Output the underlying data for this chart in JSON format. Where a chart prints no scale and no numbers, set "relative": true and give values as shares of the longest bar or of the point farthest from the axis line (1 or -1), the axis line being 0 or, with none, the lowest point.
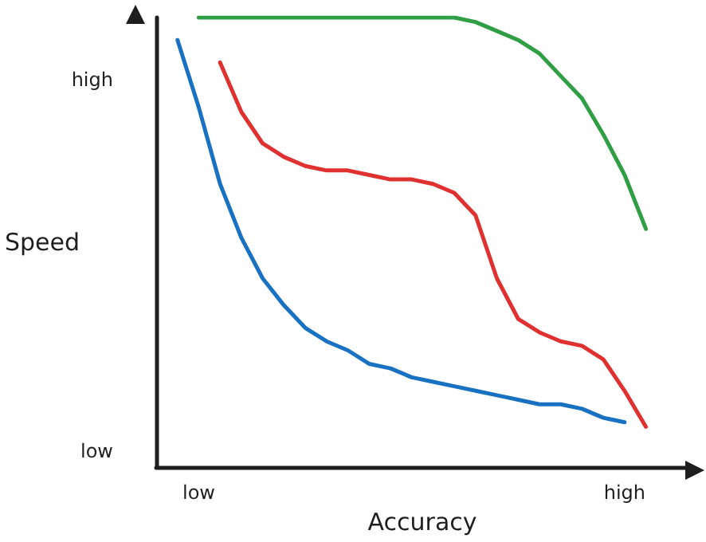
{
  "chart_data": {
    "type": "line",
    "relative": true,
    "xlabel": "Accuracy",
    "ylabel": "Speed",
    "categories": [
      null,
      null,
      "low",
      null,
      null,
      null,
      null,
      null,
      null,
      null,
      null,
      null,
      null,
      null,
      null,
      null,
      null,
      null,
      null,
      null,
      null,
      null,
      "high",
      null,
      null,
      null
    ],
    "annotations": [
      "low",
      "high"
    ],
    "grid": false,
    "marker": "none",
    "line_style": "solid",
    "series": [
      {
        "color": "#1971c2",
        "values": [
          null,
          0.95,
          0.8,
          0.63,
          0.51,
          0.42,
          0.36,
          0.31,
          0.28,
          0.26,
          0.23,
          0.22,
          0.2,
          0.19,
          0.18,
          0.17,
          0.16,
          0.15,
          0.14,
          0.14,
          0.13,
          0.11,
          0.1,
          null,
          null,
          null
        ]
      },
      {
        "color": "#e03131",
        "values": [
          null,
          null,
          null,
          0.9,
          0.79,
          0.72,
          0.69,
          0.67,
          0.66,
          0.66,
          0.65,
          0.64,
          0.64,
          0.63,
          0.61,
          0.56,
          0.42,
          0.33,
          0.3,
          0.28,
          0.27,
          0.24,
          0.17,
          0.09,
          null,
          null
        ]
      },
      {
        "color": "#2f9e44",
        "values": [
          null,
          null,
          1,
          1,
          1,
          1,
          1,
          1,
          1,
          1,
          1,
          1,
          1,
          1,
          1,
          0.99,
          0.97,
          0.95,
          0.92,
          0.87,
          0.82,
          0.74,
          0.65,
          0.53,
          null,
          null
        ]
      }
    ]
  }
}
